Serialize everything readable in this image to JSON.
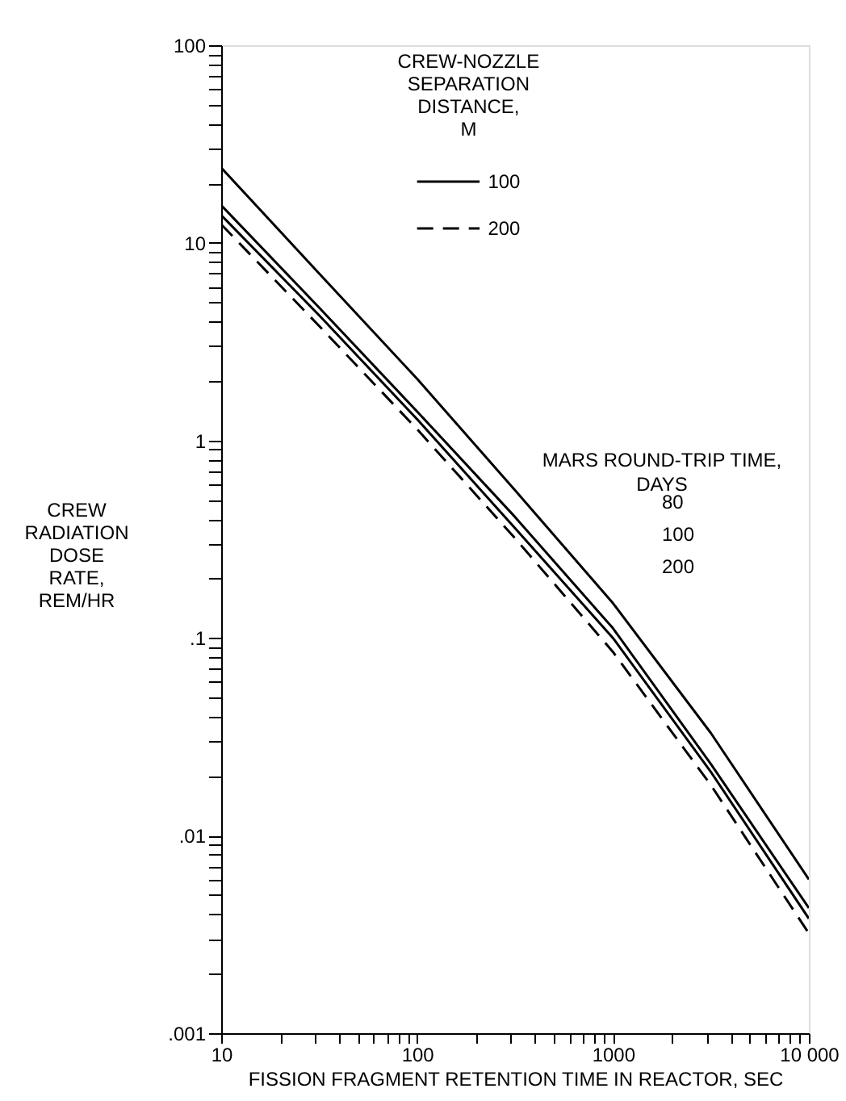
{
  "chart_data": {
    "type": "line",
    "xlabel": "FISSION FRAGMENT RETENTION TIME IN REACTOR, SEC",
    "ylabel": "CREW RADIATION DOSE RATE, REM/HR",
    "legend_title": "CREW-NOZZLE SEPARATION DISTANCE, M",
    "log": "xy",
    "grid": false,
    "legend": "top",
    "marker": "none",
    "xlim": [
      10,
      10000
    ],
    "ylim": [
      0.001,
      100
    ],
    "xticks": [
      10,
      100,
      1000,
      {
        "value": 10000,
        "label": "10 000"
      },
      {
        "value": 20,
        "label": null
      },
      {
        "value": 30,
        "label": null
      },
      {
        "value": 40,
        "label": null
      },
      {
        "value": 50,
        "label": null
      },
      {
        "value": 60,
        "label": null
      },
      {
        "value": 70,
        "label": null
      },
      {
        "value": 80,
        "label": null
      },
      {
        "value": 90,
        "label": null
      },
      {
        "value": 200,
        "label": null
      },
      {
        "value": 300,
        "label": null
      },
      {
        "value": 400,
        "label": null
      },
      {
        "value": 500,
        "label": null
      },
      {
        "value": 600,
        "label": null
      },
      {
        "value": 700,
        "label": null
      },
      {
        "value": 800,
        "label": null
      },
      {
        "value": 900,
        "label": null
      },
      {
        "value": 2000,
        "label": null
      },
      {
        "value": 3000,
        "label": null
      },
      {
        "value": 4000,
        "label": null
      },
      {
        "value": 5000,
        "label": null
      },
      {
        "value": 6000,
        "label": null
      },
      {
        "value": 7000,
        "label": null
      },
      {
        "value": 8000,
        "label": null
      },
      {
        "value": 9000,
        "label": null
      }
    ],
    "yticks": [
      {
        "value": 0.001,
        "label": ".001"
      },
      {
        "value": 0.01,
        "label": ".01"
      },
      {
        "value": 0.1,
        "label": ".1"
      },
      1,
      10,
      100,
      {
        "value": 0.002,
        "label": null
      },
      {
        "value": 0.003,
        "label": null
      },
      {
        "value": 0.004,
        "label": null
      },
      {
        "value": 0.005,
        "label": null
      },
      {
        "value": 0.006,
        "label": null
      },
      {
        "value": 0.007,
        "label": null
      },
      {
        "value": 0.008,
        "label": null
      },
      {
        "value": 0.009,
        "label": null
      },
      {
        "value": 0.02,
        "label": null
      },
      {
        "value": 0.03,
        "label": null
      },
      {
        "value": 0.04,
        "label": null
      },
      {
        "value": 0.05,
        "label": null
      },
      {
        "value": 0.06,
        "label": null
      },
      {
        "value": 0.07,
        "label": null
      },
      {
        "value": 0.08,
        "label": null
      },
      {
        "value": 0.09,
        "label": null
      },
      {
        "value": 0.2,
        "label": null
      },
      {
        "value": 0.3,
        "label": null
      },
      {
        "value": 0.4,
        "label": null
      },
      {
        "value": 0.5,
        "label": null
      },
      {
        "value": 0.6,
        "label": null
      },
      {
        "value": 0.7,
        "label": null
      },
      {
        "value": 0.8,
        "label": null
      },
      {
        "value": 0.9,
        "label": null
      },
      {
        "value": 2,
        "label": null
      },
      {
        "value": 3,
        "label": null
      },
      {
        "value": 4,
        "label": null
      },
      {
        "value": 5,
        "label": null
      },
      {
        "value": 6,
        "label": null
      },
      {
        "value": 7,
        "label": null
      },
      {
        "value": 8,
        "label": null
      },
      {
        "value": 9,
        "label": null
      },
      {
        "value": 20,
        "label": null
      },
      {
        "value": 30,
        "label": null
      },
      {
        "value": 40,
        "label": null
      },
      {
        "value": 50,
        "label": null
      },
      {
        "value": 60,
        "label": null
      },
      {
        "value": 70,
        "label": null
      },
      {
        "value": 80,
        "label": null
      },
      {
        "value": 90,
        "label": null
      }
    ],
    "x": [
      10,
      31.6,
      100,
      316,
      1000,
      3162,
      10000
    ],
    "series": [
      {
        "name": "100",
        "color": "#000000",
        "line_style": "solid",
        "values": [
          24,
          7.0,
          2.05,
          0.56,
          0.15,
          0.033,
          0.006
        ]
      },
      {
        "color": "#000000",
        "line_style": "solid",
        "values": [
          15.5,
          4.7,
          1.4,
          0.41,
          0.112,
          0.023,
          0.0043
        ]
      },
      {
        "color": "#000000",
        "line_style": "solid",
        "values": [
          13.8,
          4.3,
          1.28,
          0.36,
          0.1,
          0.021,
          0.0038
        ]
      },
      {
        "name": "200",
        "color": "#000000",
        "line_style": "dashed",
        "values": [
          12.4,
          3.8,
          1.14,
          0.32,
          0.085,
          0.018,
          0.0032
        ]
      }
    ],
    "annotations": [
      "MARS ROUND-TRIP TIME, DAYS",
      "80",
      "100",
      "200"
    ]
  }
}
